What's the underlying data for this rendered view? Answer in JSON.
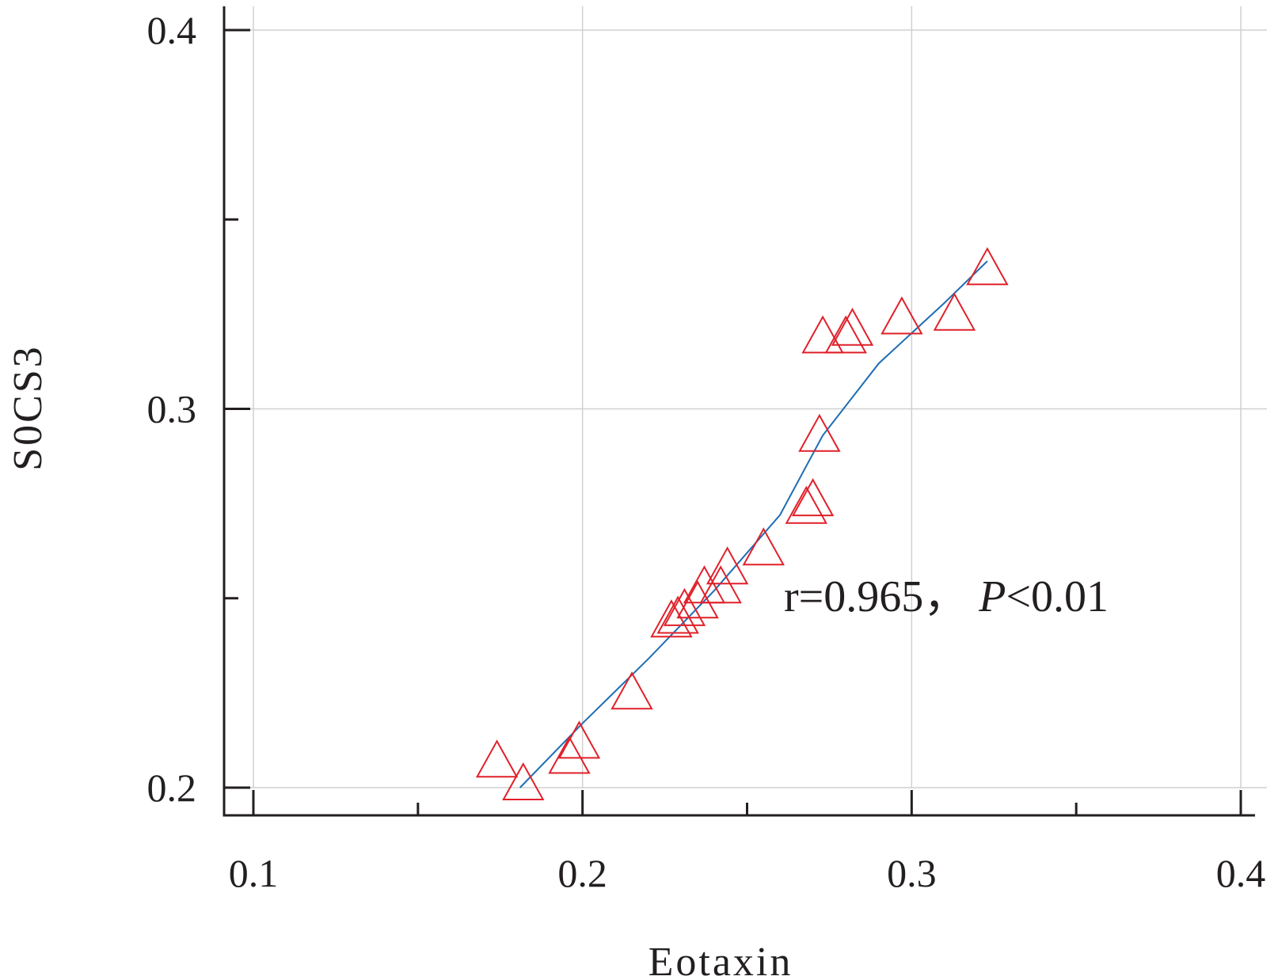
{
  "chart_data": {
    "type": "scatter",
    "xlabel": "Eotaxin",
    "ylabel": "S0CS3",
    "xlim": [
      0.1,
      0.4
    ],
    "ylim": [
      0.2,
      0.4
    ],
    "x_ticks": [
      "0.1",
      "0.2",
      "0.3",
      "0.4"
    ],
    "y_ticks": [
      "0.2",
      "0.3",
      "0.4"
    ],
    "grid": true,
    "annotation": {
      "text": "r=0.965，",
      "italic": "P",
      "rest": "<0.01"
    },
    "colors": {
      "points": "#e0202a",
      "fit_line": "#1f6db5",
      "grid": "#d0d0d0",
      "axis": "#231f20"
    },
    "series": [
      {
        "marker": "triangle",
        "x": [
          0.174,
          0.182,
          0.196,
          0.199,
          0.215,
          0.227,
          0.229,
          0.231,
          0.235,
          0.237,
          0.242,
          0.244,
          0.255,
          0.268,
          0.27,
          0.272,
          0.273,
          0.28,
          0.282,
          0.297,
          0.313,
          0.323
        ],
        "y": [
          0.206,
          0.2,
          0.207,
          0.211,
          0.224,
          0.243,
          0.244,
          0.246,
          0.248,
          0.252,
          0.252,
          0.257,
          0.262,
          0.273,
          0.275,
          0.292,
          0.318,
          0.318,
          0.32,
          0.323,
          0.324,
          0.336
        ]
      }
    ],
    "fit_line": {
      "x": [
        0.181,
        0.2,
        0.22,
        0.24,
        0.26,
        0.273,
        0.29,
        0.31,
        0.323
      ],
      "y": [
        0.2,
        0.217,
        0.234,
        0.252,
        0.272,
        0.293,
        0.312,
        0.328,
        0.339
      ]
    }
  }
}
